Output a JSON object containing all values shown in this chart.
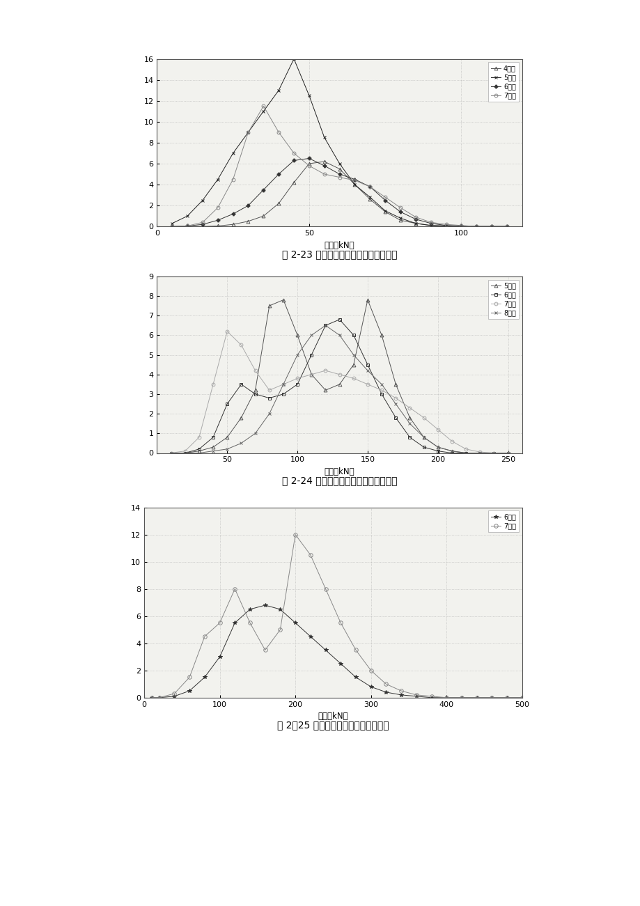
{
  "fig_width": 9.2,
  "fig_height": 13.01,
  "chart1": {
    "caption": "图 2-23 部分车辆类型的单轴单胎轴载谱",
    "xlabel": "轴重（kN）",
    "xlim": [
      0,
      120
    ],
    "ylim": [
      0,
      16
    ],
    "xticks": [
      0,
      50,
      100
    ],
    "yticks": [
      0,
      2,
      4,
      6,
      8,
      10,
      12,
      14,
      16
    ],
    "series": [
      {
        "label": "4类车",
        "marker": "^",
        "color": "#555555",
        "x": [
          5,
          10,
          15,
          20,
          25,
          30,
          35,
          40,
          45,
          50,
          55,
          60,
          65,
          70,
          75,
          80,
          85,
          90,
          95,
          100,
          105,
          110,
          115
        ],
        "y": [
          0,
          0,
          0,
          0.05,
          0.2,
          0.5,
          1.0,
          2.2,
          4.2,
          6.0,
          6.2,
          5.5,
          4.0,
          2.6,
          1.4,
          0.6,
          0.3,
          0.1,
          0.05,
          0,
          0,
          0,
          0
        ]
      },
      {
        "label": "5类车",
        "marker": "x",
        "color": "#222222",
        "x": [
          5,
          10,
          15,
          20,
          25,
          30,
          35,
          40,
          45,
          50,
          55,
          60,
          65,
          70,
          75,
          80,
          85,
          90,
          95,
          100,
          105,
          110,
          115
        ],
        "y": [
          0.3,
          1.0,
          2.5,
          4.5,
          7.0,
          9.0,
          11.0,
          13.0,
          16.0,
          12.5,
          8.5,
          6.0,
          4.0,
          2.8,
          1.5,
          0.8,
          0.3,
          0.1,
          0.05,
          0,
          0,
          0,
          0
        ]
      },
      {
        "label": "6类车",
        "marker": "P",
        "color": "#333333",
        "x": [
          5,
          10,
          15,
          20,
          25,
          30,
          35,
          40,
          45,
          50,
          55,
          60,
          65,
          70,
          75,
          80,
          85,
          90,
          95,
          100,
          105,
          110,
          115
        ],
        "y": [
          0,
          0.05,
          0.2,
          0.6,
          1.2,
          2.0,
          3.5,
          5.0,
          6.3,
          6.5,
          5.8,
          5.0,
          4.5,
          3.8,
          2.5,
          1.4,
          0.7,
          0.3,
          0.1,
          0.05,
          0,
          0,
          0
        ]
      },
      {
        "label": "7类车",
        "marker": "o",
        "color": "#888888",
        "x": [
          5,
          10,
          15,
          20,
          25,
          30,
          35,
          40,
          45,
          50,
          55,
          60,
          65,
          70,
          75,
          80,
          85,
          90,
          95,
          100,
          105,
          110,
          115
        ],
        "y": [
          0,
          0.05,
          0.4,
          1.8,
          4.5,
          9.0,
          11.5,
          9.0,
          7.0,
          5.8,
          5.0,
          4.7,
          4.4,
          3.8,
          2.8,
          1.8,
          0.9,
          0.4,
          0.2,
          0.1,
          0,
          0,
          0
        ]
      }
    ]
  },
  "chart2": {
    "caption": "图 2-24 部分车辆类型的单轴双胎轴载谱",
    "xlabel": "轴重（kN）",
    "xlim": [
      0,
      260
    ],
    "ylim": [
      0,
      9
    ],
    "xticks": [
      50,
      100,
      150,
      200,
      250
    ],
    "yticks": [
      0,
      1,
      2,
      3,
      4,
      5,
      6,
      7,
      8,
      9
    ],
    "series": [
      {
        "label": "5类车",
        "marker": "^",
        "color": "#555555",
        "x": [
          10,
          20,
          30,
          40,
          50,
          60,
          70,
          80,
          90,
          100,
          110,
          120,
          130,
          140,
          150,
          160,
          170,
          180,
          190,
          200,
          210,
          220,
          230,
          240,
          250
        ],
        "y": [
          0,
          0,
          0.1,
          0.3,
          0.8,
          1.8,
          3.2,
          7.5,
          7.8,
          6.0,
          4.0,
          3.2,
          3.5,
          4.5,
          7.8,
          6.0,
          3.5,
          1.8,
          0.8,
          0.3,
          0.1,
          0,
          0,
          0,
          0
        ]
      },
      {
        "label": "6类车",
        "marker": "s",
        "color": "#333333",
        "x": [
          10,
          20,
          30,
          40,
          50,
          60,
          70,
          80,
          90,
          100,
          110,
          120,
          130,
          140,
          150,
          160,
          170,
          180,
          190,
          200,
          210,
          220,
          230,
          240,
          250
        ],
        "y": [
          0,
          0,
          0.2,
          0.8,
          2.5,
          3.5,
          3.0,
          2.8,
          3.0,
          3.5,
          5.0,
          6.5,
          6.8,
          6.0,
          4.5,
          3.0,
          1.8,
          0.8,
          0.3,
          0.1,
          0,
          0,
          0,
          0,
          0
        ]
      },
      {
        "label": "7类车",
        "marker": "o",
        "color": "#aaaaaa",
        "x": [
          10,
          20,
          30,
          40,
          50,
          60,
          70,
          80,
          90,
          100,
          110,
          120,
          130,
          140,
          150,
          160,
          170,
          180,
          190,
          200,
          210,
          220,
          230,
          240,
          250
        ],
        "y": [
          0,
          0.1,
          0.8,
          3.5,
          6.2,
          5.5,
          4.2,
          3.2,
          3.5,
          3.8,
          4.0,
          4.2,
          4.0,
          3.8,
          3.5,
          3.2,
          2.8,
          2.3,
          1.8,
          1.2,
          0.6,
          0.2,
          0.05,
          0,
          0
        ]
      },
      {
        "label": "8类车",
        "marker": "x",
        "color": "#666666",
        "x": [
          10,
          20,
          30,
          40,
          50,
          60,
          70,
          80,
          90,
          100,
          110,
          120,
          130,
          140,
          150,
          160,
          170,
          180,
          190,
          200,
          210,
          220,
          230,
          240,
          250
        ],
        "y": [
          0,
          0,
          0,
          0.1,
          0.2,
          0.5,
          1.0,
          2.0,
          3.5,
          5.0,
          6.0,
          6.5,
          6.0,
          5.0,
          4.2,
          3.5,
          2.5,
          1.5,
          0.8,
          0.3,
          0.1,
          0,
          0,
          0,
          0
        ]
      }
    ]
  },
  "chart3": {
    "caption": "图 2％25 部分车辆类型的双联轴轴载谱",
    "xlabel": "轴重（kN）",
    "xlim": [
      0,
      500
    ],
    "ylim": [
      0,
      14
    ],
    "xticks": [
      0,
      100,
      200,
      300,
      400,
      500
    ],
    "yticks": [
      0,
      2,
      4,
      6,
      8,
      10,
      12,
      14
    ],
    "series": [
      {
        "label": "6类车",
        "marker": "*",
        "color": "#333333",
        "x": [
          10,
          20,
          40,
          60,
          80,
          100,
          120,
          140,
          160,
          180,
          200,
          220,
          240,
          260,
          280,
          300,
          320,
          340,
          360,
          380,
          400,
          420,
          440,
          460,
          480,
          500
        ],
        "y": [
          0,
          0,
          0.1,
          0.5,
          1.5,
          3.0,
          5.5,
          6.5,
          6.8,
          6.5,
          5.5,
          4.5,
          3.5,
          2.5,
          1.5,
          0.8,
          0.4,
          0.2,
          0.1,
          0,
          0,
          0,
          0,
          0,
          0,
          0
        ]
      },
      {
        "label": "7类车",
        "marker": "o",
        "color": "#888888",
        "x": [
          10,
          20,
          40,
          60,
          80,
          100,
          120,
          140,
          160,
          180,
          200,
          220,
          240,
          260,
          280,
          300,
          320,
          340,
          360,
          380,
          400,
          420,
          440,
          460,
          480,
          500
        ],
        "y": [
          0,
          0,
          0.3,
          1.5,
          4.5,
          5.5,
          8.0,
          5.5,
          3.5,
          5.0,
          12.0,
          10.5,
          8.0,
          5.5,
          3.5,
          2.0,
          1.0,
          0.5,
          0.2,
          0.1,
          0,
          0,
          0,
          0,
          0,
          0
        ]
      }
    ]
  }
}
